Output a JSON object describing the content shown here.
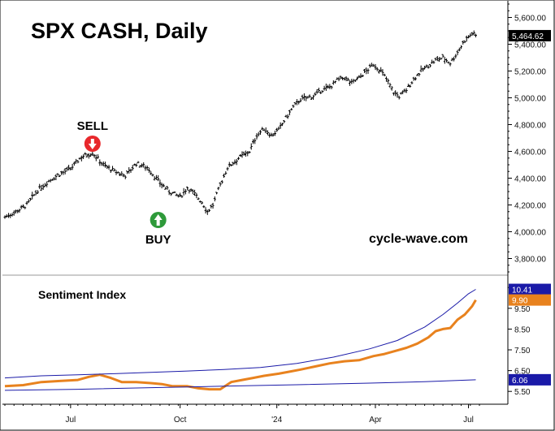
{
  "chart_data": [
    {
      "panel": "price",
      "type": "ohlc",
      "title": "SPX CASH, Daily",
      "watermark": "cycle-wave.com",
      "last_value_label": "5,464.62",
      "ylim": [
        3700,
        5700
      ],
      "xlim": [
        0,
        260
      ],
      "y_ticks": [
        3800,
        4000,
        4200,
        4400,
        4600,
        4800,
        5000,
        5200,
        5400,
        5600
      ],
      "y_tick_labels": [
        "3,800.00",
        "4,000.00",
        "4,200.00",
        "4,400.00",
        "4,600.00",
        "4,800.00",
        "5,000.00",
        "5,200.00",
        "5,400.00",
        "5,600.00"
      ],
      "x_ticks": [
        {
          "x": 36,
          "label": "Jul"
        },
        {
          "x": 96,
          "label": "Oct"
        },
        {
          "x": 149,
          "label": "'24"
        },
        {
          "x": 203,
          "label": "Apr"
        },
        {
          "x": 254,
          "label": "Jul"
        }
      ],
      "price_anchors": [
        [
          0,
          4110
        ],
        [
          6,
          4150
        ],
        [
          12,
          4200
        ],
        [
          18,
          4310
        ],
        [
          24,
          4380
        ],
        [
          30,
          4430
        ],
        [
          36,
          4470
        ],
        [
          42,
          4560
        ],
        [
          48,
          4590
        ],
        [
          54,
          4500
        ],
        [
          60,
          4450
        ],
        [
          66,
          4420
        ],
        [
          72,
          4510
        ],
        [
          78,
          4480
        ],
        [
          84,
          4380
        ],
        [
          90,
          4300
        ],
        [
          96,
          4260
        ],
        [
          100,
          4330
        ],
        [
          104,
          4280
        ],
        [
          108,
          4220
        ],
        [
          111,
          4150
        ],
        [
          114,
          4200
        ],
        [
          118,
          4350
        ],
        [
          122,
          4480
        ],
        [
          128,
          4550
        ],
        [
          134,
          4600
        ],
        [
          138,
          4720
        ],
        [
          142,
          4770
        ],
        [
          146,
          4720
        ],
        [
          150,
          4760
        ],
        [
          154,
          4850
        ],
        [
          158,
          4930
        ],
        [
          162,
          4990
        ],
        [
          166,
          5000
        ],
        [
          170,
          5020
        ],
        [
          174,
          5060
        ],
        [
          178,
          5080
        ],
        [
          182,
          5130
        ],
        [
          186,
          5150
        ],
        [
          190,
          5110
        ],
        [
          194,
          5150
        ],
        [
          198,
          5200
        ],
        [
          202,
          5250
        ],
        [
          206,
          5200
        ],
        [
          210,
          5120
        ],
        [
          213,
          5040
        ],
        [
          216,
          5010
        ],
        [
          220,
          5060
        ],
        [
          224,
          5140
        ],
        [
          228,
          5200
        ],
        [
          232,
          5240
        ],
        [
          236,
          5280
        ],
        [
          240,
          5300
        ],
        [
          244,
          5260
        ],
        [
          248,
          5340
        ],
        [
          252,
          5430
        ],
        [
          256,
          5480
        ],
        [
          258,
          5464
        ]
      ],
      "signals": [
        {
          "label": "SELL",
          "x": 48,
          "direction": "down",
          "color": "#e8282c"
        },
        {
          "label": "BUY",
          "x": 84,
          "direction": "up",
          "color": "#2e9a3a"
        }
      ]
    },
    {
      "panel": "indicator",
      "type": "line",
      "title": "Sentiment Index",
      "ylim": [
        5.0,
        10.9
      ],
      "xlim": [
        0,
        260
      ],
      "y_ticks": [
        5.5,
        6.5,
        7.5,
        8.5,
        9.5,
        10.5
      ],
      "y_tick_labels": [
        "5.50",
        "6.50",
        "7.50",
        "8.50",
        "9.50",
        "10.50"
      ],
      "value_tags": [
        {
          "value": 10.41,
          "label": "10.41",
          "color": "#1a1aa8"
        },
        {
          "value": 9.9,
          "label": "9.90",
          "color": "#e8821e"
        },
        {
          "value": 6.06,
          "label": "6.06",
          "color": "#1a1aa8"
        }
      ],
      "series": [
        {
          "color": "#e8821e",
          "points": [
            [
              0,
              5.75
            ],
            [
              10,
              5.8
            ],
            [
              20,
              5.95
            ],
            [
              30,
              6.0
            ],
            [
              40,
              6.05
            ],
            [
              46,
              6.2
            ],
            [
              52,
              6.3
            ],
            [
              58,
              6.15
            ],
            [
              64,
              5.95
            ],
            [
              72,
              5.95
            ],
            [
              80,
              5.9
            ],
            [
              86,
              5.85
            ],
            [
              92,
              5.75
            ],
            [
              100,
              5.75
            ],
            [
              106,
              5.65
            ],
            [
              112,
              5.6
            ],
            [
              118,
              5.6
            ],
            [
              124,
              5.95
            ],
            [
              130,
              6.05
            ],
            [
              136,
              6.15
            ],
            [
              142,
              6.25
            ],
            [
              150,
              6.35
            ],
            [
              156,
              6.45
            ],
            [
              162,
              6.55
            ],
            [
              170,
              6.7
            ],
            [
              178,
              6.85
            ],
            [
              186,
              6.95
            ],
            [
              194,
              7.0
            ],
            [
              202,
              7.2
            ],
            [
              208,
              7.3
            ],
            [
              214,
              7.45
            ],
            [
              220,
              7.6
            ],
            [
              226,
              7.8
            ],
            [
              232,
              8.1
            ],
            [
              236,
              8.4
            ],
            [
              240,
              8.5
            ],
            [
              244,
              8.55
            ],
            [
              248,
              8.95
            ],
            [
              252,
              9.2
            ],
            [
              256,
              9.6
            ],
            [
              258,
              9.9
            ]
          ]
        },
        {
          "color": "#1a1aa8",
          "points": [
            [
              0,
              6.15
            ],
            [
              20,
              6.25
            ],
            [
              40,
              6.3
            ],
            [
              60,
              6.35
            ],
            [
              80,
              6.42
            ],
            [
              100,
              6.48
            ],
            [
              120,
              6.55
            ],
            [
              140,
              6.65
            ],
            [
              160,
              6.85
            ],
            [
              180,
              7.15
            ],
            [
              200,
              7.55
            ],
            [
              215,
              7.95
            ],
            [
              230,
              8.6
            ],
            [
              240,
              9.2
            ],
            [
              248,
              9.75
            ],
            [
              254,
              10.2
            ],
            [
              258,
              10.41
            ]
          ]
        },
        {
          "color": "#1a1aa8",
          "points": [
            [
              0,
              5.55
            ],
            [
              40,
              5.6
            ],
            [
              80,
              5.68
            ],
            [
              120,
              5.75
            ],
            [
              160,
              5.82
            ],
            [
              200,
              5.9
            ],
            [
              230,
              5.97
            ],
            [
              258,
              6.06
            ]
          ]
        }
      ]
    }
  ]
}
